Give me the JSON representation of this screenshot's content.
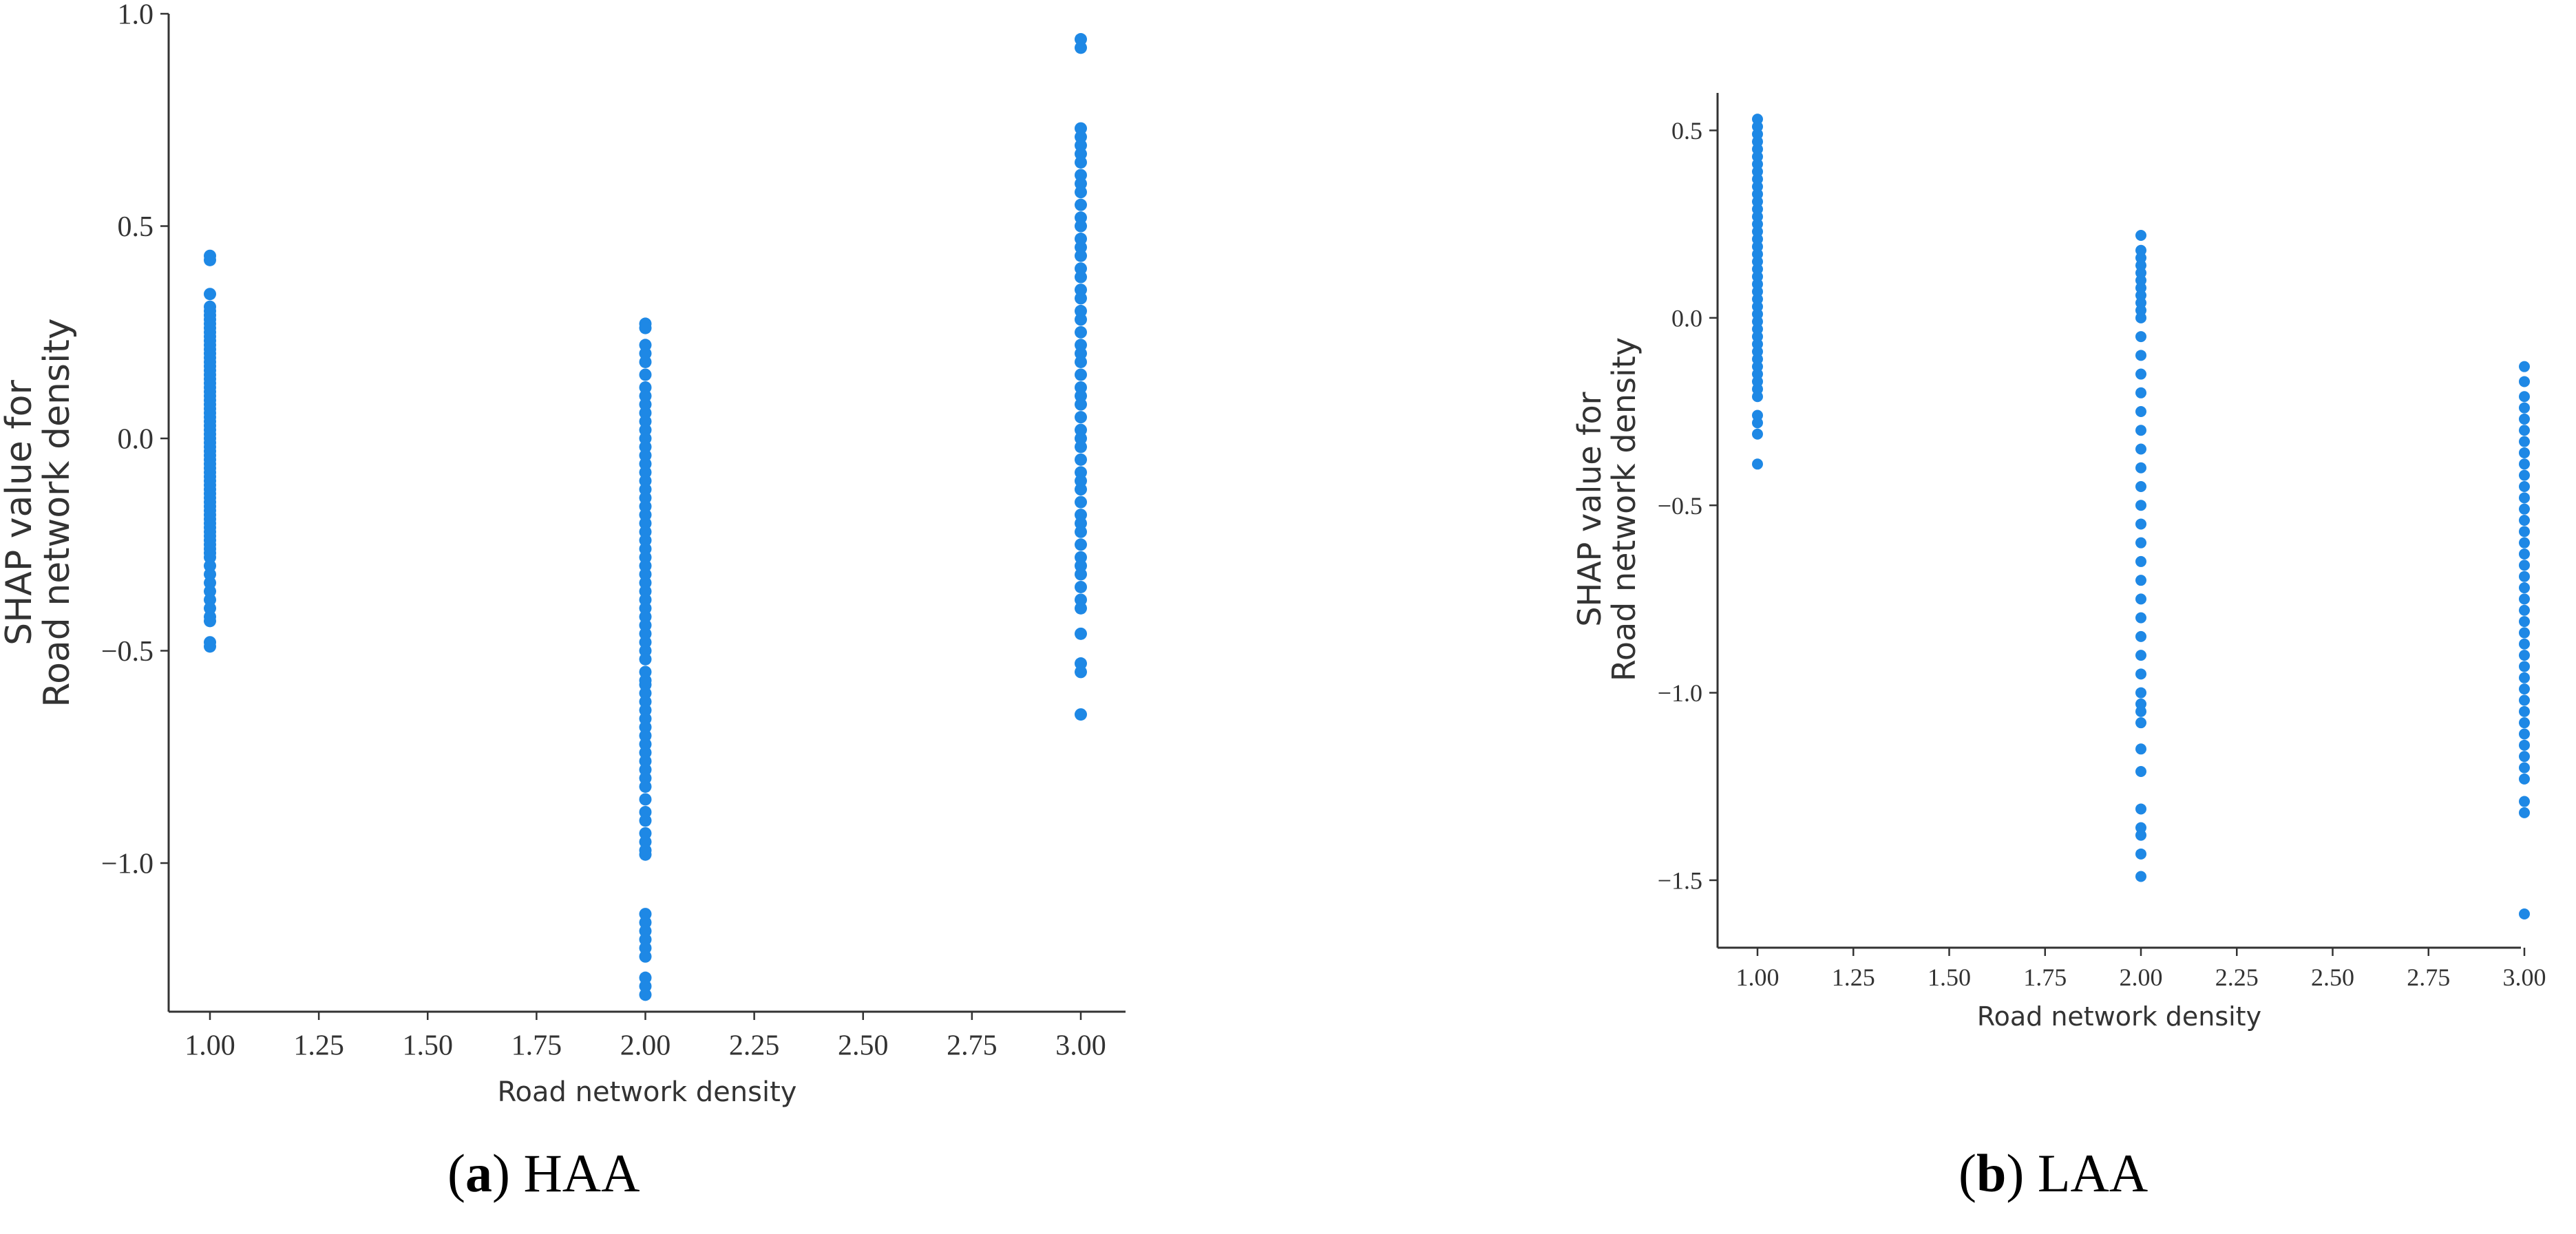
{
  "panels": [
    {
      "caption_letter": "a",
      "caption_text": " HAA"
    },
    {
      "caption_letter": "b",
      "caption_text": " LAA"
    }
  ],
  "chart_data": [
    {
      "type": "scatter",
      "xlabel": "Road network density",
      "ylabel_line1": "SHAP value for",
      "ylabel_line2": "Road network density",
      "xlim": [
        1.0,
        3.0
      ],
      "ylim": [
        -1.35,
        1.0
      ],
      "xticks": [
        1.0,
        1.25,
        1.5,
        1.75,
        2.0,
        2.25,
        2.5,
        2.75,
        3.0
      ],
      "xtick_labels": [
        "1.00",
        "1.25",
        "1.50",
        "1.75",
        "2.00",
        "2.25",
        "2.50",
        "2.75",
        "3.00"
      ],
      "yticks": [
        -1.0,
        -0.5,
        0.0,
        0.5,
        1.0
      ],
      "ytick_labels": [
        "−1.0",
        "−0.5",
        "0.0",
        "0.5",
        "1.0"
      ],
      "color": "#1e88e5",
      "groups": [
        {
          "x": 1.0,
          "values": [
            0.43,
            0.42,
            0.34,
            0.31,
            0.3,
            0.29,
            0.28,
            0.27,
            0.26,
            0.25,
            0.24,
            0.23,
            0.22,
            0.21,
            0.2,
            0.19,
            0.18,
            0.17,
            0.16,
            0.15,
            0.14,
            0.13,
            0.12,
            0.11,
            0.1,
            0.09,
            0.08,
            0.07,
            0.06,
            0.05,
            0.04,
            0.03,
            0.02,
            0.01,
            0.0,
            -0.01,
            -0.02,
            -0.03,
            -0.04,
            -0.05,
            -0.06,
            -0.07,
            -0.08,
            -0.09,
            -0.1,
            -0.11,
            -0.12,
            -0.13,
            -0.14,
            -0.15,
            -0.16,
            -0.17,
            -0.18,
            -0.19,
            -0.2,
            -0.21,
            -0.22,
            -0.23,
            -0.24,
            -0.25,
            -0.26,
            -0.27,
            -0.28,
            -0.3,
            -0.32,
            -0.34,
            -0.36,
            -0.38,
            -0.4,
            -0.42,
            -0.43,
            -0.48,
            -0.49
          ]
        },
        {
          "x": 2.0,
          "values": [
            0.27,
            0.26,
            0.22,
            0.2,
            0.18,
            0.15,
            0.12,
            0.1,
            0.08,
            0.06,
            0.04,
            0.02,
            0.0,
            -0.02,
            -0.04,
            -0.06,
            -0.08,
            -0.1,
            -0.12,
            -0.14,
            -0.16,
            -0.18,
            -0.2,
            -0.22,
            -0.24,
            -0.26,
            -0.28,
            -0.3,
            -0.32,
            -0.34,
            -0.36,
            -0.38,
            -0.4,
            -0.42,
            -0.44,
            -0.46,
            -0.48,
            -0.5,
            -0.52,
            -0.55,
            -0.57,
            -0.58,
            -0.6,
            -0.62,
            -0.64,
            -0.66,
            -0.68,
            -0.7,
            -0.72,
            -0.74,
            -0.76,
            -0.78,
            -0.8,
            -0.82,
            -0.85,
            -0.88,
            -0.9,
            -0.93,
            -0.95,
            -0.97,
            -0.98,
            -1.12,
            -1.14,
            -1.16,
            -1.18,
            -1.2,
            -1.22,
            -1.27,
            -1.29,
            -1.31
          ]
        },
        {
          "x": 3.0,
          "values": [
            0.94,
            0.92,
            0.73,
            0.71,
            0.69,
            0.67,
            0.65,
            0.62,
            0.6,
            0.58,
            0.55,
            0.52,
            0.5,
            0.47,
            0.45,
            0.43,
            0.4,
            0.38,
            0.35,
            0.33,
            0.3,
            0.28,
            0.25,
            0.22,
            0.2,
            0.18,
            0.15,
            0.12,
            0.1,
            0.08,
            0.05,
            0.02,
            0.0,
            -0.02,
            -0.05,
            -0.08,
            -0.1,
            -0.12,
            -0.15,
            -0.18,
            -0.2,
            -0.22,
            -0.25,
            -0.28,
            -0.3,
            -0.32,
            -0.35,
            -0.38,
            -0.4,
            -0.46,
            -0.53,
            -0.55,
            -0.65
          ]
        }
      ]
    },
    {
      "type": "scatter",
      "xlabel": "Road network density",
      "ylabel_line1": "SHAP value for",
      "ylabel_line2": "Road network density",
      "xlim": [
        1.0,
        3.0
      ],
      "ylim": [
        -1.68,
        0.6
      ],
      "xticks": [
        1.0,
        1.25,
        1.5,
        1.75,
        2.0,
        2.25,
        2.5,
        2.75,
        3.0
      ],
      "xtick_labels": [
        "1.00",
        "1.25",
        "1.50",
        "1.75",
        "2.00",
        "2.25",
        "2.50",
        "2.75",
        "3.00"
      ],
      "yticks": [
        -1.5,
        -1.0,
        -0.5,
        0.0,
        0.5
      ],
      "ytick_labels": [
        "−1.5",
        "−1.0",
        "−0.5",
        "0.0",
        "0.5"
      ],
      "color": "#1e88e5",
      "groups": [
        {
          "x": 1.0,
          "values": [
            0.53,
            0.51,
            0.49,
            0.47,
            0.45,
            0.43,
            0.41,
            0.39,
            0.37,
            0.35,
            0.33,
            0.31,
            0.29,
            0.27,
            0.25,
            0.23,
            0.21,
            0.19,
            0.17,
            0.15,
            0.13,
            0.11,
            0.09,
            0.07,
            0.05,
            0.03,
            0.01,
            -0.01,
            -0.03,
            -0.05,
            -0.07,
            -0.09,
            -0.11,
            -0.13,
            -0.15,
            -0.17,
            -0.19,
            -0.21,
            -0.26,
            -0.28,
            -0.31,
            -0.39
          ]
        },
        {
          "x": 2.0,
          "values": [
            0.22,
            0.18,
            0.16,
            0.14,
            0.12,
            0.1,
            0.08,
            0.06,
            0.04,
            0.02,
            0.0,
            -0.05,
            -0.1,
            -0.15,
            -0.2,
            -0.25,
            -0.3,
            -0.35,
            -0.4,
            -0.45,
            -0.5,
            -0.55,
            -0.6,
            -0.65,
            -0.7,
            -0.75,
            -0.8,
            -0.85,
            -0.9,
            -0.95,
            -1.0,
            -1.03,
            -1.05,
            -1.08,
            -1.15,
            -1.21,
            -1.31,
            -1.36,
            -1.38,
            -1.43,
            -1.49
          ]
        },
        {
          "x": 3.0,
          "values": [
            -0.13,
            -0.17,
            -0.21,
            -0.24,
            -0.27,
            -0.3,
            -0.33,
            -0.36,
            -0.39,
            -0.42,
            -0.45,
            -0.48,
            -0.51,
            -0.54,
            -0.57,
            -0.6,
            -0.63,
            -0.66,
            -0.69,
            -0.72,
            -0.75,
            -0.78,
            -0.81,
            -0.84,
            -0.87,
            -0.9,
            -0.93,
            -0.96,
            -0.99,
            -1.02,
            -1.05,
            -1.08,
            -1.11,
            -1.14,
            -1.17,
            -1.2,
            -1.23,
            -1.29,
            -1.32,
            -1.59
          ]
        }
      ]
    }
  ]
}
